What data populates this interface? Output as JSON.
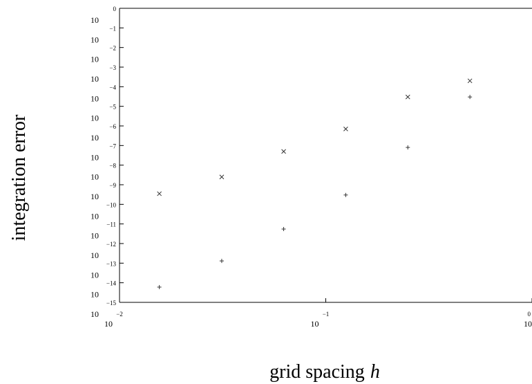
{
  "chart_data": {
    "type": "scatter",
    "title": "",
    "xlabel": "grid spacing",
    "xlabel_var": "h",
    "ylabel": "integration error",
    "xscale": "log",
    "yscale": "log",
    "xlim": [
      0.01,
      1
    ],
    "ylim": [
      1e-15,
      1
    ],
    "grid": false,
    "legend": "none",
    "x_ticks": [
      {
        "value": 0.01,
        "base": "10",
        "exp": "−2"
      },
      {
        "value": 0.1,
        "base": "10",
        "exp": "−1"
      },
      {
        "value": 1,
        "base": "10",
        "exp": "0"
      }
    ],
    "y_ticks": [
      {
        "value": 1,
        "base": "10",
        "exp": "0"
      },
      {
        "value": 0.1,
        "base": "10",
        "exp": "−1"
      },
      {
        "value": 0.01,
        "base": "10",
        "exp": "−2"
      },
      {
        "value": 0.001,
        "base": "10",
        "exp": "−3"
      },
      {
        "value": 0.0001,
        "base": "10",
        "exp": "−4"
      },
      {
        "value": 1e-05,
        "base": "10",
        "exp": "−5"
      },
      {
        "value": 1e-06,
        "base": "10",
        "exp": "−6"
      },
      {
        "value": 1e-07,
        "base": "10",
        "exp": "−7"
      },
      {
        "value": 1e-08,
        "base": "10",
        "exp": "−8"
      },
      {
        "value": 1e-09,
        "base": "10",
        "exp": "−9"
      },
      {
        "value": 1e-10,
        "base": "10",
        "exp": "−10"
      },
      {
        "value": 1e-11,
        "base": "10",
        "exp": "−11"
      },
      {
        "value": 1e-12,
        "base": "10",
        "exp": "−12"
      },
      {
        "value": 1e-13,
        "base": "10",
        "exp": "−13"
      },
      {
        "value": 1e-14,
        "base": "10",
        "exp": "−14"
      },
      {
        "value": 1e-15,
        "base": "10",
        "exp": "−15"
      }
    ],
    "series": [
      {
        "marker": "x",
        "x": [
          0.0156,
          0.0313,
          0.0625,
          0.125,
          0.25,
          0.5
        ],
        "y": [
          3.5e-10,
          2.5e-09,
          5e-08,
          7e-07,
          3e-05,
          0.0002
        ]
      },
      {
        "marker": "+",
        "x": [
          0.0156,
          0.0313,
          0.0625,
          0.125,
          0.25,
          0.5
        ],
        "y": [
          6e-15,
          1.3e-13,
          5.5e-12,
          3e-10,
          8e-08,
          3e-05
        ]
      }
    ]
  }
}
